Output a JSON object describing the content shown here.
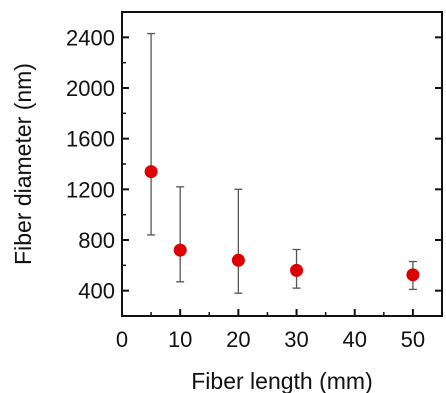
{
  "chart_data": {
    "type": "scatter",
    "title": "",
    "xlabel": "Fiber length (mm)",
    "ylabel": "Fiber diameter (nm)",
    "xlim": [
      0,
      55
    ],
    "ylim": [
      200,
      2600
    ],
    "xticks": [
      0,
      10,
      20,
      30,
      40,
      50
    ],
    "yticks": [
      400,
      800,
      1200,
      1600,
      2000,
      2400
    ],
    "xtick_labels": [
      "0",
      "10",
      "20",
      "30",
      "40",
      "50"
    ],
    "ytick_labels": [
      "400",
      "800",
      "1200",
      "1600",
      "2000",
      "2400"
    ],
    "grid": false,
    "series": [
      {
        "x": [
          5,
          10,
          20,
          30,
          50
        ],
        "y": [
          1340,
          720,
          640,
          560,
          525
        ],
        "yerr_low": [
          840,
          470,
          380,
          420,
          410
        ],
        "yerr_high": [
          2430,
          1220,
          1200,
          725,
          630
        ],
        "color": "#dd0000",
        "errorbar_color": "#555555"
      }
    ]
  }
}
